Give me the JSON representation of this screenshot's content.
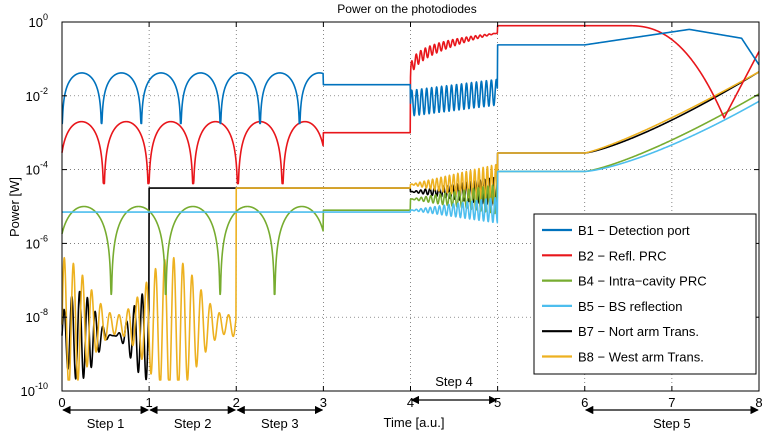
{
  "chart_data": {
    "type": "line",
    "title": "Power on the photodiodes",
    "xlabel": "Time [a.u.]",
    "ylabel": "Power [W]",
    "xlim": [
      0,
      8
    ],
    "ylim_exp": [
      -10,
      0
    ],
    "y_scale": "log",
    "x_ticks": [
      "0",
      "1",
      "2",
      "3",
      "4",
      "5",
      "6",
      "7",
      "8"
    ],
    "y_ticks": [
      {
        "base": "10",
        "exp": "-10"
      },
      {
        "base": "10",
        "exp": "-8"
      },
      {
        "base": "10",
        "exp": "-6"
      },
      {
        "base": "10",
        "exp": "-4"
      },
      {
        "base": "10",
        "exp": "-2"
      },
      {
        "base": "10",
        "exp": "0"
      }
    ],
    "grid": true,
    "legend_position": "bottom-right",
    "series": [
      {
        "name": "B1 − Detection port",
        "color": "#0072BD"
      },
      {
        "name": "B2 − Refl. PRC",
        "color": "#E8161B"
      },
      {
        "name": "B4 − Intra−cavity PRC",
        "color": "#77AC30"
      },
      {
        "name": "B5 − BS reflection",
        "color": "#4DBEEE"
      },
      {
        "name": "B7 − Nort arm Trans.",
        "color": "#000000"
      },
      {
        "name": "B8 − West arm Trans.",
        "color": "#EDB120"
      }
    ],
    "steps": [
      {
        "label": "Step 1",
        "from": 0,
        "to": 1
      },
      {
        "label": "Step 2",
        "from": 1,
        "to": 2
      },
      {
        "label": "Step 3",
        "from": 2,
        "to": 3
      },
      {
        "label": "Step 4",
        "from": 4,
        "to": 5
      },
      {
        "label": "Step 5",
        "from": 6,
        "to": 8
      }
    ]
  }
}
